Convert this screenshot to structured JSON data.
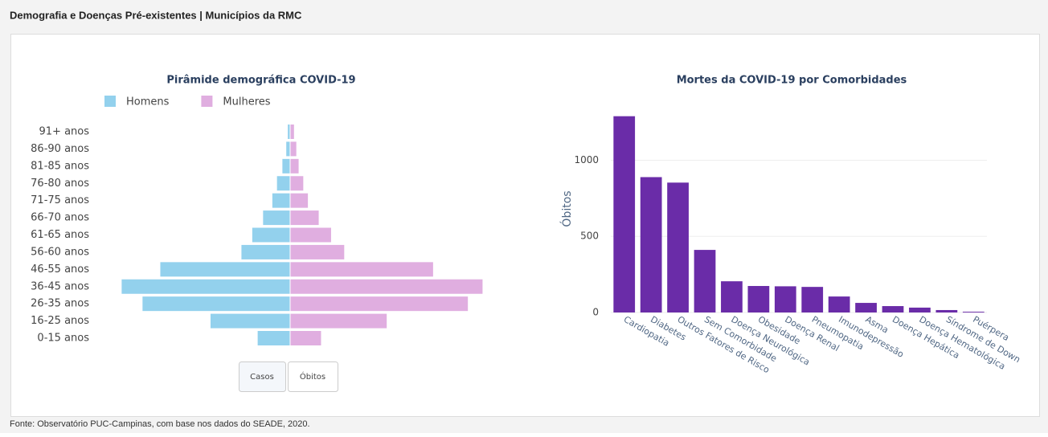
{
  "header": {
    "title": "Demografia e Doenças Pré-existentes | Municípios da RMC"
  },
  "footer": {
    "source": "Fonte: Observatório PUC-Campinas, com base nos dados do SEADE, 2020."
  },
  "buttons": [
    "Casos",
    "Óbitos"
  ],
  "chart_data": [
    {
      "type": "pyramid",
      "title": "Pirâmide demográfica COVID-19",
      "categories": [
        "0-15 anos",
        "16-25 anos",
        "26-35 anos",
        "36-45 anos",
        "46-55 anos",
        "56-60 anos",
        "61-65 anos",
        "66-70 anos",
        "71-75 anos",
        "76-80 anos",
        "81-85 anos",
        "86-90 anos",
        "91+ anos"
      ],
      "series": [
        {
          "name": "Homens",
          "color": "#93d1ed",
          "side": "left",
          "values": [
            42,
            103,
            191,
            218,
            168,
            63,
            49,
            35,
            23,
            17,
            10,
            5,
            3
          ]
        },
        {
          "name": "Mulheres",
          "color": "#e0aee0",
          "side": "right",
          "values": [
            40,
            125,
            230,
            249,
            185,
            70,
            53,
            37,
            23,
            17,
            11,
            8,
            5
          ]
        }
      ],
      "xlim": [
        -260,
        260
      ],
      "legend": "top"
    },
    {
      "type": "bar",
      "title": "Mortes da COVID-19 por Comorbidades",
      "ylabel": "Óbitos",
      "categories": [
        "Cardiopatia",
        "Diabetes",
        "Outros Fatores de Risco",
        "Sem Comorbidade",
        "Doença Neurológica",
        "Obesidade",
        "Doença Renal",
        "Pneumopatia",
        "Imunodepressão",
        "Asma",
        "Doença Hepática",
        "Doença Hematológica",
        "Síndrome de Down",
        "Puérpera"
      ],
      "values": [
        1289,
        889,
        853,
        411,
        205,
        174,
        172,
        168,
        105,
        63,
        42,
        32,
        16,
        5
      ],
      "color": "#6a2ca8",
      "ylim": [
        0,
        1340
      ],
      "yticks": [
        0,
        500,
        1000
      ],
      "grid": true
    }
  ]
}
